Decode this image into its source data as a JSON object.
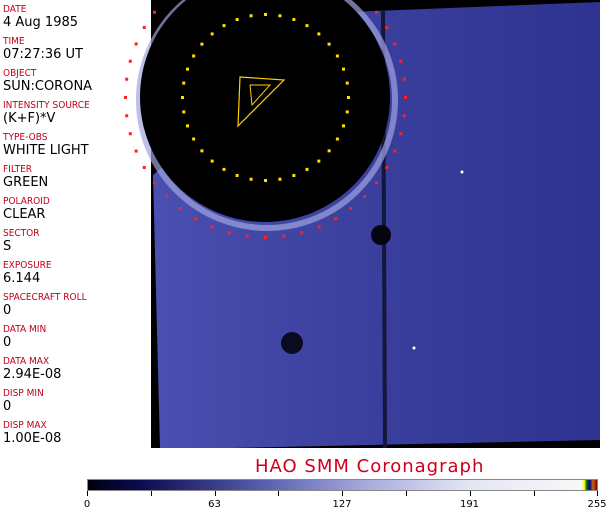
{
  "fields": [
    {
      "label": "DATE",
      "value": "4 Aug 1985"
    },
    {
      "label": "TIME",
      "value": "07:27:36 UT"
    },
    {
      "label": "OBJECT",
      "value": "SUN:CORONA"
    },
    {
      "label": "INTENSITY SOURCE",
      "value": "(K+F)*V"
    },
    {
      "label": "TYPE-OBS",
      "value": "WHITE LIGHT"
    },
    {
      "label": "FILTER",
      "value": "GREEN"
    },
    {
      "label": "POLAROID",
      "value": "CLEAR"
    },
    {
      "label": "SECTOR",
      "value": "S"
    },
    {
      "label": "EXPOSURE",
      "value": "6.144"
    },
    {
      "label": "SPACECRAFT ROLL",
      "value": "0"
    },
    {
      "label": "DATA MIN",
      "value": "0"
    },
    {
      "label": "DATA MAX",
      "value": "2.94E-08"
    },
    {
      "label": "DISP MIN",
      "value": "0"
    },
    {
      "label": "DISP MAX",
      "value": "1.00E-08"
    }
  ],
  "title": "HAO  SMM Coronagraph",
  "colorbar": {
    "ticks": [
      "0",
      "63",
      "127",
      "191",
      "255"
    ]
  },
  "colors": {
    "label": "#c00018",
    "title": "#d0001c",
    "corona": "#3a3e9c"
  }
}
